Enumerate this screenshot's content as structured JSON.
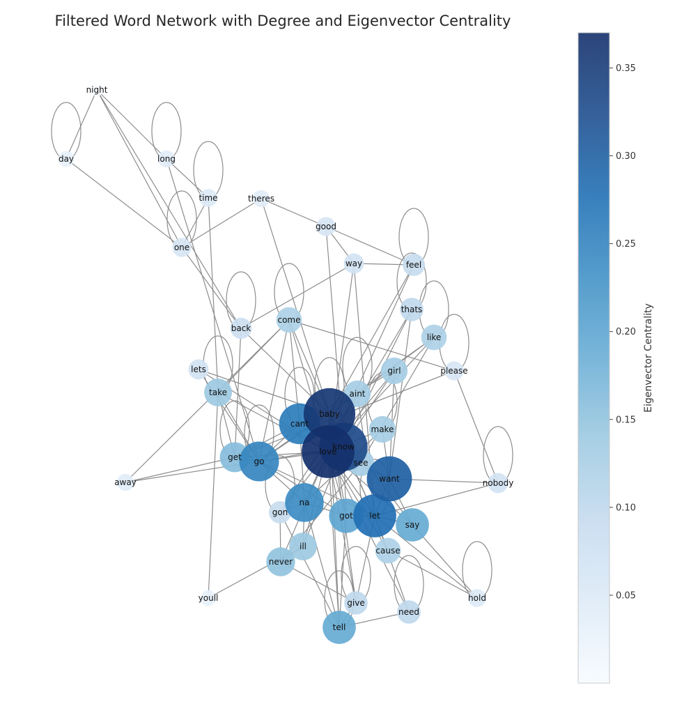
{
  "title": "Filtered Word Network with Degree and Eigenvector Centrality",
  "colorbar": {
    "label": "Eigenvector Centrality",
    "ticks": [
      "0.05",
      "0.10",
      "0.15",
      "0.20",
      "0.25",
      "0.30",
      "0.35"
    ],
    "range": [
      0.0,
      0.37
    ],
    "colormap": [
      "#f7fbff",
      "#deebf7",
      "#c6dbef",
      "#9ecae1",
      "#6baed6",
      "#4292c6",
      "#2171b5",
      "#1f4f8f",
      "#14306b"
    ]
  },
  "edge_color": "#8c8c8c",
  "chart_data": {
    "type": "network",
    "title": "Filtered Word Network with Degree and Eigenvector Centrality",
    "colorbar_label": "Eigenvector Centrality",
    "nodes": [
      {
        "id": "night",
        "centrality": 0.0
      },
      {
        "id": "day",
        "centrality": 0.03
      },
      {
        "id": "long",
        "centrality": 0.04
      },
      {
        "id": "time",
        "centrality": 0.05
      },
      {
        "id": "theres",
        "centrality": 0.04
      },
      {
        "id": "good",
        "centrality": 0.06
      },
      {
        "id": "one",
        "centrality": 0.06
      },
      {
        "id": "way",
        "centrality": 0.07
      },
      {
        "id": "feel",
        "centrality": 0.09
      },
      {
        "id": "thats",
        "centrality": 0.1
      },
      {
        "id": "back",
        "centrality": 0.08
      },
      {
        "id": "come",
        "centrality": 0.12
      },
      {
        "id": "like",
        "centrality": 0.12
      },
      {
        "id": "please",
        "centrality": 0.06
      },
      {
        "id": "lets",
        "centrality": 0.07
      },
      {
        "id": "girl",
        "centrality": 0.13
      },
      {
        "id": "take",
        "centrality": 0.14
      },
      {
        "id": "aint",
        "centrality": 0.13
      },
      {
        "id": "baby",
        "centrality": 0.36
      },
      {
        "id": "cant",
        "centrality": 0.26
      },
      {
        "id": "make",
        "centrality": 0.13
      },
      {
        "id": "know",
        "centrality": 0.33
      },
      {
        "id": "love",
        "centrality": 0.37
      },
      {
        "id": "get",
        "centrality": 0.16
      },
      {
        "id": "go",
        "centrality": 0.25
      },
      {
        "id": "see",
        "centrality": 0.13
      },
      {
        "id": "want",
        "centrality": 0.3
      },
      {
        "id": "away",
        "centrality": 0.04
      },
      {
        "id": "nobody",
        "centrality": 0.07
      },
      {
        "id": "na",
        "centrality": 0.24
      },
      {
        "id": "gon",
        "centrality": 0.09
      },
      {
        "id": "got",
        "centrality": 0.2
      },
      {
        "id": "let",
        "centrality": 0.28
      },
      {
        "id": "say",
        "centrality": 0.19
      },
      {
        "id": "ill",
        "centrality": 0.14
      },
      {
        "id": "cause",
        "centrality": 0.12
      },
      {
        "id": "never",
        "centrality": 0.15
      },
      {
        "id": "youll",
        "centrality": 0.03
      },
      {
        "id": "give",
        "centrality": 0.1
      },
      {
        "id": "need",
        "centrality": 0.1
      },
      {
        "id": "hold",
        "centrality": 0.05
      },
      {
        "id": "tell",
        "centrality": 0.19
      }
    ],
    "self_loops": [
      "day",
      "long",
      "time",
      "one",
      "feel",
      "thats",
      "like",
      "please",
      "back",
      "come",
      "take",
      "aint",
      "baby",
      "get",
      "go",
      "cant",
      "let",
      "nobody",
      "gon",
      "hold",
      "give",
      "tell",
      "need",
      "make"
    ],
    "edges": [
      [
        "night",
        "day"
      ],
      [
        "night",
        "long"
      ],
      [
        "night",
        "one"
      ],
      [
        "night",
        "back"
      ],
      [
        "day",
        "one"
      ],
      [
        "long",
        "time"
      ],
      [
        "long",
        "go"
      ],
      [
        "time",
        "one"
      ],
      [
        "time",
        "take"
      ],
      [
        "theres",
        "one"
      ],
      [
        "theres",
        "good"
      ],
      [
        "theres",
        "baby"
      ],
      [
        "good",
        "way"
      ],
      [
        "good",
        "feel"
      ],
      [
        "good",
        "know"
      ],
      [
        "one",
        "back"
      ],
      [
        "way",
        "feel"
      ],
      [
        "way",
        "back"
      ],
      [
        "way",
        "love"
      ],
      [
        "way",
        "let"
      ],
      [
        "feel",
        "love"
      ],
      [
        "feel",
        "baby"
      ],
      [
        "thats",
        "love"
      ],
      [
        "thats",
        "know"
      ],
      [
        "thats",
        "want"
      ],
      [
        "like",
        "love"
      ],
      [
        "like",
        "baby"
      ],
      [
        "like",
        "go"
      ],
      [
        "like",
        "see"
      ],
      [
        "please",
        "come"
      ],
      [
        "please",
        "get"
      ],
      [
        "please",
        "nobody"
      ],
      [
        "back",
        "baby"
      ],
      [
        "back",
        "get"
      ],
      [
        "come",
        "take"
      ],
      [
        "come",
        "know"
      ],
      [
        "come",
        "love"
      ],
      [
        "come",
        "go"
      ],
      [
        "come",
        "cant"
      ],
      [
        "come",
        "away"
      ],
      [
        "lets",
        "love"
      ],
      [
        "lets",
        "baby"
      ],
      [
        "lets",
        "go"
      ],
      [
        "girl",
        "love"
      ],
      [
        "girl",
        "know"
      ],
      [
        "girl",
        "want"
      ],
      [
        "girl",
        "cant"
      ],
      [
        "take",
        "go"
      ],
      [
        "take",
        "love"
      ],
      [
        "take",
        "youll"
      ],
      [
        "take",
        "get"
      ],
      [
        "aint",
        "know"
      ],
      [
        "aint",
        "love"
      ],
      [
        "aint",
        "gon"
      ],
      [
        "aint",
        "let"
      ],
      [
        "baby",
        "love"
      ],
      [
        "baby",
        "know"
      ],
      [
        "baby",
        "cant"
      ],
      [
        "baby",
        "go"
      ],
      [
        "baby",
        "got"
      ],
      [
        "baby",
        "let"
      ],
      [
        "baby",
        "say"
      ],
      [
        "baby",
        "tell"
      ],
      [
        "baby",
        "give"
      ],
      [
        "cant",
        "love"
      ],
      [
        "cant",
        "get"
      ],
      [
        "cant",
        "go"
      ],
      [
        "cant",
        "na"
      ],
      [
        "make",
        "love"
      ],
      [
        "make",
        "want"
      ],
      [
        "make",
        "na"
      ],
      [
        "know",
        "love"
      ],
      [
        "know",
        "go"
      ],
      [
        "know",
        "let"
      ],
      [
        "know",
        "got"
      ],
      [
        "know",
        "ill"
      ],
      [
        "love",
        "get"
      ],
      [
        "love",
        "go"
      ],
      [
        "love",
        "see"
      ],
      [
        "love",
        "want"
      ],
      [
        "love",
        "na"
      ],
      [
        "love",
        "gon"
      ],
      [
        "love",
        "got"
      ],
      [
        "love",
        "let"
      ],
      [
        "love",
        "say"
      ],
      [
        "love",
        "ill"
      ],
      [
        "love",
        "cause"
      ],
      [
        "love",
        "never"
      ],
      [
        "love",
        "give"
      ],
      [
        "love",
        "need"
      ],
      [
        "love",
        "tell"
      ],
      [
        "get",
        "away"
      ],
      [
        "get",
        "go"
      ],
      [
        "go",
        "away"
      ],
      [
        "go",
        "na"
      ],
      [
        "go",
        "got"
      ],
      [
        "go",
        "let"
      ],
      [
        "see",
        "want"
      ],
      [
        "see",
        "never"
      ],
      [
        "want",
        "nobody"
      ],
      [
        "want",
        "let"
      ],
      [
        "want",
        "say"
      ],
      [
        "na",
        "gon"
      ],
      [
        "na",
        "ill"
      ],
      [
        "na",
        "tell"
      ],
      [
        "na",
        "got"
      ],
      [
        "got",
        "let"
      ],
      [
        "got",
        "tell"
      ],
      [
        "let",
        "say"
      ],
      [
        "let",
        "nobody"
      ],
      [
        "let",
        "cause"
      ],
      [
        "let",
        "hold"
      ],
      [
        "let",
        "give"
      ],
      [
        "let",
        "need"
      ],
      [
        "say",
        "hold"
      ],
      [
        "cause",
        "hold"
      ],
      [
        "ill",
        "never"
      ],
      [
        "ill",
        "youll"
      ],
      [
        "never",
        "gon"
      ],
      [
        "never",
        "give"
      ],
      [
        "give",
        "tell"
      ],
      [
        "tell",
        "need"
      ],
      [
        "gon",
        "tell"
      ]
    ]
  }
}
